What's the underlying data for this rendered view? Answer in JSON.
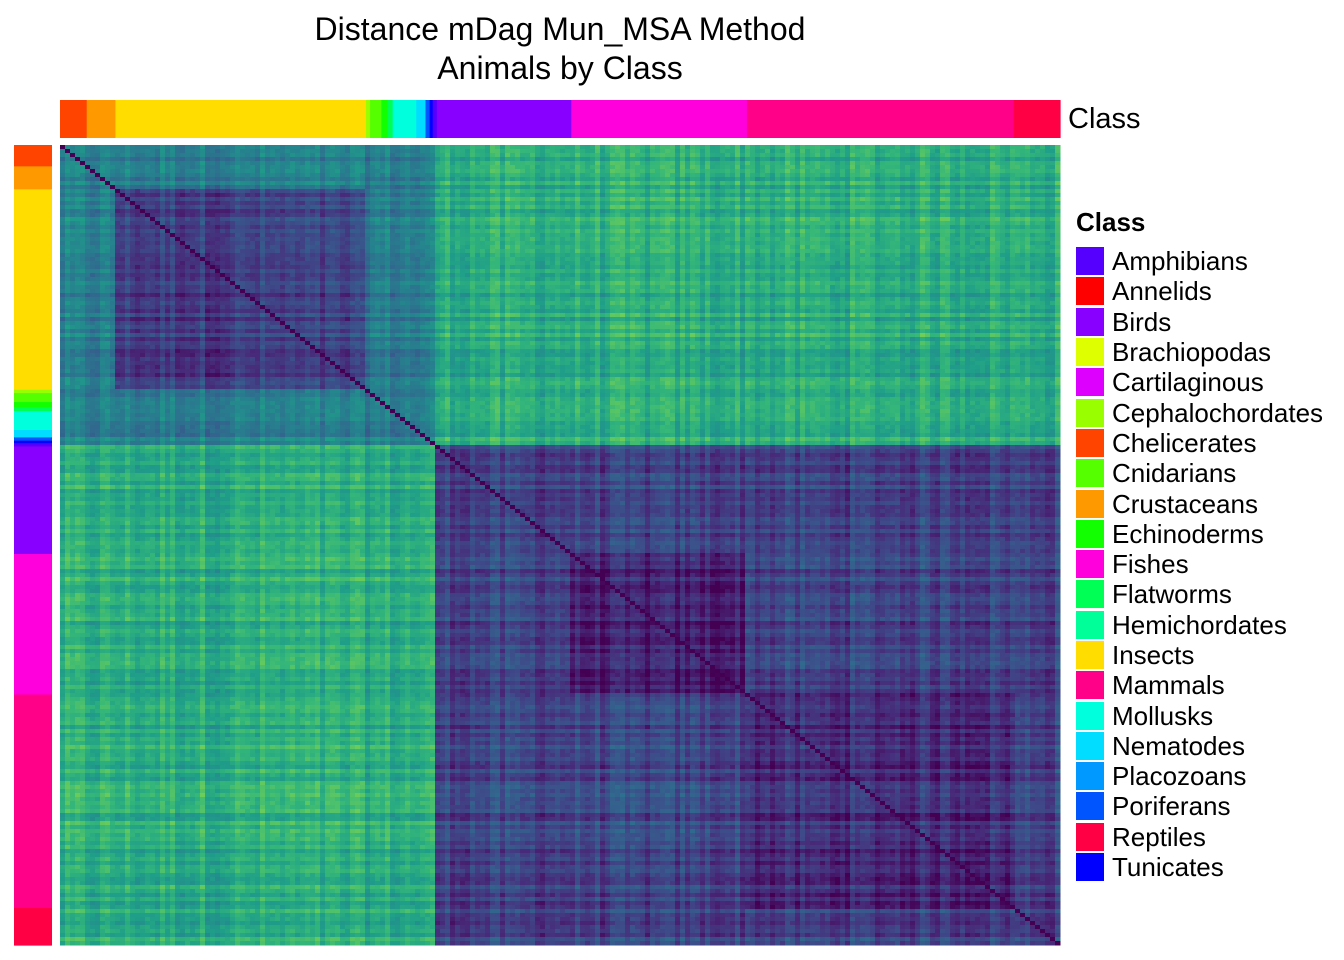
{
  "chart_data": {
    "type": "heatmap",
    "title": "Distance mDag Mun_MSA Method",
    "subtitle": "Animals by Class",
    "annotation_label": "Class",
    "legend_title": "Class",
    "legend_position": "right",
    "colormap": "viridis",
    "legend": [
      {
        "name": "Amphibians",
        "color": "#5500ff"
      },
      {
        "name": "Annelids",
        "color": "#ff0000"
      },
      {
        "name": "Birds",
        "color": "#8800ff"
      },
      {
        "name": "Brachiopodas",
        "color": "#ddff00"
      },
      {
        "name": "Cartilaginous",
        "color": "#dd00ff"
      },
      {
        "name": "Cephalochordates",
        "color": "#99ff00"
      },
      {
        "name": "Chelicerates",
        "color": "#ff4400"
      },
      {
        "name": "Cnidarians",
        "color": "#55ff00"
      },
      {
        "name": "Crustaceans",
        "color": "#ff9900"
      },
      {
        "name": "Echinoderms",
        "color": "#11ff00"
      },
      {
        "name": "Fishes",
        "color": "#ff00dd"
      },
      {
        "name": "Flatworms",
        "color": "#00ff55"
      },
      {
        "name": "Hemichordates",
        "color": "#00ff99"
      },
      {
        "name": "Insects",
        "color": "#ffdd00"
      },
      {
        "name": "Mammals",
        "color": "#ff0088"
      },
      {
        "name": "Mollusks",
        "color": "#00ffdd"
      },
      {
        "name": "Nematodes",
        "color": "#00ddff"
      },
      {
        "name": "Placozoans",
        "color": "#0099ff"
      },
      {
        "name": "Poriferans",
        "color": "#0055ff"
      },
      {
        "name": "Reptiles",
        "color": "#ff0044"
      },
      {
        "name": "Tunicates",
        "color": "#0000ff"
      }
    ],
    "order": [
      {
        "class": "Chelicerates",
        "fraction": 0.026
      },
      {
        "class": "Crustaceans",
        "fraction": 0.028
      },
      {
        "class": "Insects",
        "fraction": 0.244
      },
      {
        "class": "Cephalochordates",
        "fraction": 0.004
      },
      {
        "class": "Cnidarians",
        "fraction": 0.011
      },
      {
        "class": "Echinoderms",
        "fraction": 0.006
      },
      {
        "class": "Flatworms",
        "fraction": 0.005
      },
      {
        "class": "Mollusks",
        "fraction": 0.023
      },
      {
        "class": "Nematodes",
        "fraction": 0.009
      },
      {
        "class": "Poriferans",
        "fraction": 0.004
      },
      {
        "class": "Tunicates",
        "fraction": 0.003
      },
      {
        "class": "Amphibians",
        "fraction": 0.004
      },
      {
        "class": "Birds",
        "fraction": 0.131
      },
      {
        "class": "Fishes",
        "fraction": 0.171
      },
      {
        "class": "Mammals",
        "fraction": 0.26
      },
      {
        "class": "Reptiles",
        "fraction": 0.045
      }
    ],
    "block_distance": {
      "invertebrates_vs_invertebrates": 0.42,
      "insects_vs_insects": 0.18,
      "vertebrates_vs_vertebrates": 0.2,
      "fishes_vs_fishes": 0.08,
      "mammals_vs_mammals": 0.12,
      "invertebrates_vs_vertebrates": 0.62,
      "color_scale_range": [
        0,
        1
      ]
    }
  }
}
